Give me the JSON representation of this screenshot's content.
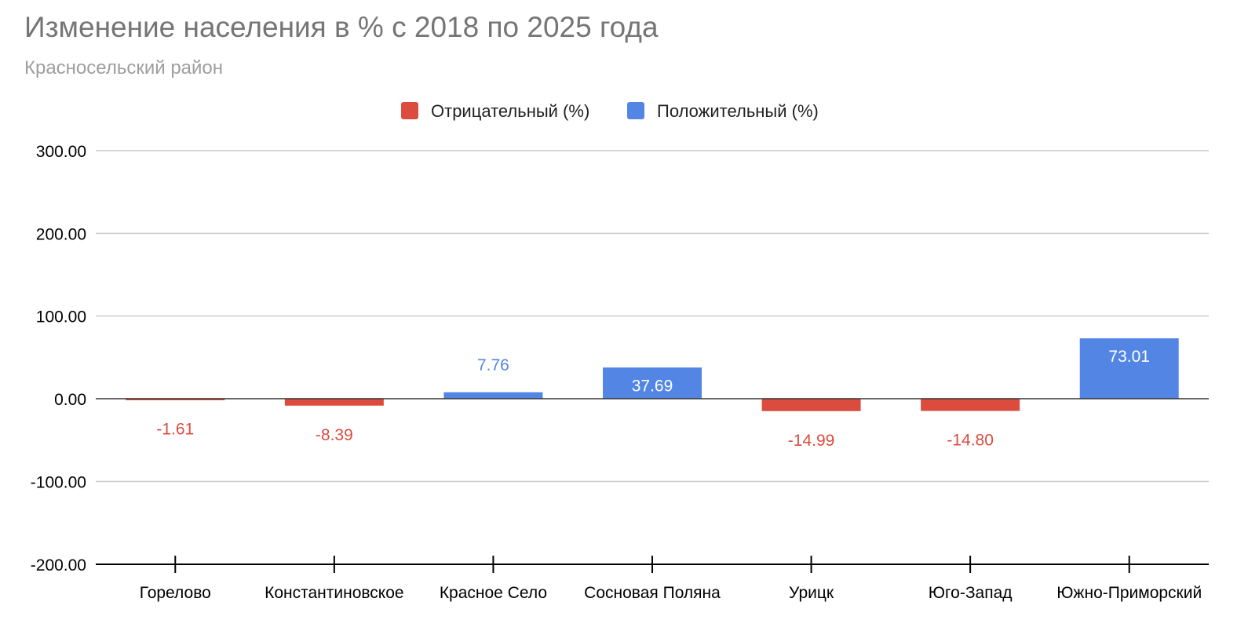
{
  "chart_data": {
    "type": "bar",
    "title": "Изменение населения в % с 2018 по 2025 года",
    "subtitle": "Красносельский район",
    "categories": [
      "Горелово",
      "Константиновское",
      "Красное Село",
      "Сосновая Поляна",
      "Урицк",
      "Юго-Запад",
      "Южно-Приморский"
    ],
    "values": [
      -1.61,
      -8.39,
      7.76,
      37.69,
      -14.99,
      -14.8,
      73.01
    ],
    "value_labels": [
      "-1.61",
      "-8.39",
      "7.76",
      "37.69",
      "-14.99",
      "-14.80",
      "73.01"
    ],
    "series": [
      {
        "name": "Отрицательный (%)",
        "color": "#db4c3f"
      },
      {
        "name": "Положительный (%)",
        "color": "#5386e4"
      }
    ],
    "yticks": [
      300,
      200,
      100,
      0,
      -100,
      -200
    ],
    "ytick_labels": [
      "300.00",
      "200.00",
      "100.00",
      "0.00",
      "-100.00",
      "-200.00"
    ],
    "ylim": [
      -200,
      300
    ],
    "grid": true,
    "legend_position": "top"
  }
}
